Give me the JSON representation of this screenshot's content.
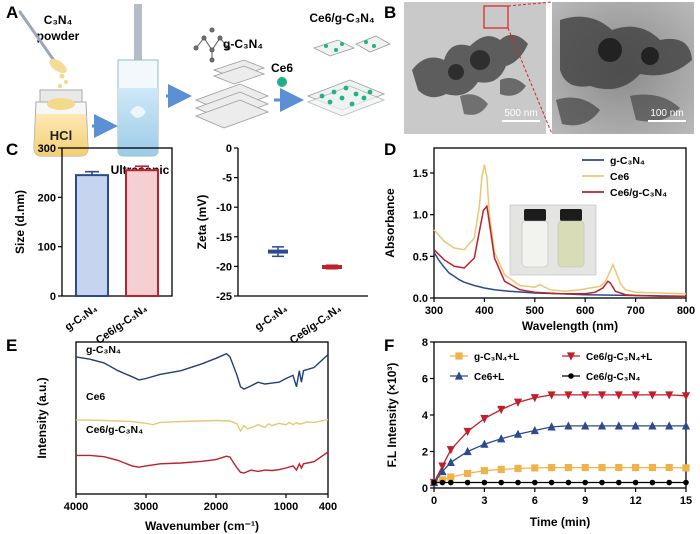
{
  "panels": {
    "A": {
      "letter": "A",
      "c3n4_powder_line1": "C₃N₄",
      "c3n4_powder_line2": "powder",
      "hcl_label": "HCl",
      "ultrasonic_label": "Ultrasonic",
      "gc3n4_label": "g-C₃N₄",
      "ce6_label": "Ce6",
      "product_label": "Ce6/g-C₃N₄"
    },
    "B": {
      "letter": "B",
      "scale_left": "500 nm",
      "scale_right": "100 nm"
    },
    "C": {
      "letter": "C"
    },
    "D": {
      "letter": "D"
    },
    "E": {
      "letter": "E"
    },
    "F": {
      "letter": "F"
    }
  },
  "chart_data": [
    {
      "id": "C-size",
      "type": "bar",
      "ylabel": "Size (d.nm)",
      "ylim": [
        0,
        300
      ],
      "yticks": [
        0,
        100,
        200,
        300
      ],
      "categories": [
        "g-C₃N₄",
        "Ce6/g-C₃N₄"
      ],
      "values": [
        245,
        255
      ],
      "errors": [
        7,
        8
      ],
      "colors": [
        "#2b4a8f",
        "#c0202a"
      ],
      "fills": [
        "#c6d4ef",
        "#f5d0d3"
      ]
    },
    {
      "id": "C-zeta",
      "type": "scatter",
      "ylabel": "Zeta (mV)",
      "ylim": [
        -25,
        0
      ],
      "yticks": [
        -25,
        -20,
        -15,
        -10,
        -5,
        0
      ],
      "categories": [
        "g-C₃N₄",
        "Ce6/g-C₃N₄"
      ],
      "values": [
        -17.5,
        -20.1
      ],
      "spread": [
        0.8,
        0.3
      ],
      "colors": [
        "#2b4a8f",
        "#c0202a"
      ]
    },
    {
      "id": "D-absorbance",
      "type": "line",
      "xlabel": "Wavelength (nm)",
      "ylabel": "Absorbance",
      "xlim": [
        300,
        800
      ],
      "ylim": [
        0,
        1.8
      ],
      "xticks": [
        300,
        400,
        500,
        600,
        700,
        800
      ],
      "yticks": [
        0,
        0.5,
        1.0,
        1.5
      ],
      "ytick_labels": [
        "0.0",
        "0.5",
        "1.0",
        "1.5"
      ],
      "series": [
        {
          "name": "g-C₃N₄",
          "color": "#2b4a8f",
          "x": [
            300,
            310,
            320,
            330,
            340,
            350,
            360,
            380,
            400,
            420,
            450,
            500,
            550,
            600,
            650,
            700,
            750,
            800
          ],
          "y": [
            0.55,
            0.45,
            0.37,
            0.3,
            0.26,
            0.22,
            0.19,
            0.15,
            0.12,
            0.1,
            0.08,
            0.06,
            0.05,
            0.04,
            0.035,
            0.03,
            0.025,
            0.02
          ]
        },
        {
          "name": "Ce6",
          "color": "#e8c873",
          "x": [
            300,
            320,
            340,
            360,
            380,
            390,
            395,
            400,
            405,
            410,
            420,
            440,
            470,
            500,
            510,
            530,
            560,
            590,
            610,
            630,
            640,
            650,
            655,
            660,
            670,
            680,
            700,
            750,
            800
          ],
          "y": [
            0.82,
            0.68,
            0.6,
            0.58,
            0.72,
            1.1,
            1.45,
            1.6,
            1.45,
            1.0,
            0.55,
            0.28,
            0.15,
            0.13,
            0.16,
            0.1,
            0.08,
            0.1,
            0.12,
            0.14,
            0.2,
            0.33,
            0.4,
            0.33,
            0.17,
            0.1,
            0.07,
            0.06,
            0.05
          ]
        },
        {
          "name": "Ce6/g-C₃N₄",
          "color": "#c0202a",
          "x": [
            300,
            320,
            340,
            360,
            380,
            390,
            398,
            405,
            410,
            420,
            440,
            470,
            500,
            550,
            600,
            620,
            635,
            645,
            650,
            660,
            680,
            700,
            750,
            800
          ],
          "y": [
            0.58,
            0.46,
            0.38,
            0.36,
            0.48,
            0.8,
            1.05,
            1.1,
            0.9,
            0.48,
            0.2,
            0.1,
            0.07,
            0.05,
            0.05,
            0.07,
            0.12,
            0.2,
            0.18,
            0.08,
            0.04,
            0.03,
            0.02,
            0.02
          ]
        }
      ]
    },
    {
      "id": "E-ftir",
      "type": "line",
      "xlabel": "Wavenumber (cm⁻¹)",
      "ylabel": "Intensity (a.u.)",
      "xlim": [
        4000,
        400
      ],
      "xticks": [
        4000,
        3000,
        2000,
        1000,
        400
      ],
      "series": [
        {
          "name": "g-C₃N₄",
          "color": "#1f3f7a",
          "x": [
            4000,
            3800,
            3600,
            3400,
            3200,
            3100,
            3000,
            2800,
            2500,
            2200,
            2000,
            1850,
            1800,
            1700,
            1650,
            1600,
            1500,
            1400,
            1300,
            1200,
            1100,
            1000,
            900,
            850,
            810,
            780,
            750,
            600,
            400
          ],
          "y": [
            0.85,
            0.8,
            0.72,
            0.55,
            0.42,
            0.35,
            0.38,
            0.47,
            0.55,
            0.7,
            0.82,
            0.92,
            0.85,
            0.45,
            0.2,
            0.15,
            0.22,
            0.3,
            0.26,
            0.28,
            0.3,
            0.38,
            0.45,
            0.2,
            0.55,
            0.3,
            0.55,
            0.62,
            0.9
          ]
        },
        {
          "name": "Ce6",
          "color": "#e8c873",
          "x": [
            4000,
            3800,
            3600,
            3400,
            3200,
            3000,
            2900,
            2800,
            2500,
            2200,
            2000,
            1800,
            1700,
            1650,
            1600,
            1550,
            1450,
            1400,
            1300,
            1250,
            1200,
            1100,
            1000,
            950,
            900,
            850,
            800,
            700,
            600,
            400
          ],
          "y": [
            0.52,
            0.52,
            0.51,
            0.5,
            0.49,
            0.45,
            0.42,
            0.47,
            0.49,
            0.5,
            0.51,
            0.5,
            0.44,
            0.28,
            0.4,
            0.33,
            0.38,
            0.42,
            0.36,
            0.44,
            0.4,
            0.45,
            0.42,
            0.47,
            0.42,
            0.46,
            0.43,
            0.48,
            0.47,
            0.53
          ]
        },
        {
          "name": "Ce6/g-C₃N₄",
          "color": "#c0202a",
          "x": [
            4000,
            3800,
            3600,
            3400,
            3200,
            3100,
            3000,
            2800,
            2500,
            2200,
            2000,
            1850,
            1800,
            1700,
            1650,
            1600,
            1500,
            1400,
            1300,
            1200,
            1100,
            1000,
            900,
            850,
            810,
            780,
            750,
            600,
            400
          ],
          "y": [
            0.3,
            0.3,
            0.27,
            0.18,
            0.05,
            0.02,
            0.05,
            0.1,
            0.12,
            0.16,
            0.2,
            0.28,
            0.26,
            0.0,
            -0.1,
            -0.12,
            -0.05,
            -0.08,
            -0.05,
            -0.06,
            -0.04,
            0.0,
            0.05,
            -0.05,
            0.1,
            0.0,
            0.1,
            0.15,
            0.38
          ]
        }
      ]
    },
    {
      "id": "F-fluorescence",
      "type": "line",
      "xlabel": "Time (min)",
      "ylabel": "F.L Intensity (×10³)",
      "xlim": [
        0,
        15
      ],
      "ylim": [
        0,
        8
      ],
      "xticks": [
        0,
        3,
        6,
        9,
        12,
        15
      ],
      "yticks": [
        0,
        2,
        4,
        6,
        8
      ],
      "series": [
        {
          "name": "g-C₃N₄+L",
          "color": "#f0b34a",
          "marker": "square",
          "x": [
            0,
            0.5,
            1,
            2,
            3,
            4,
            5,
            6,
            7,
            8,
            9,
            10,
            11,
            12,
            13,
            14,
            15
          ],
          "y": [
            0.3,
            0.45,
            0.6,
            0.8,
            0.95,
            1.02,
            1.07,
            1.1,
            1.12,
            1.12,
            1.12,
            1.12,
            1.12,
            1.12,
            1.12,
            1.12,
            1.1
          ]
        },
        {
          "name": "Ce6/g-C₃N₄+L",
          "color": "#c0202a",
          "marker": "triangle-down",
          "x": [
            0,
            0.5,
            1,
            2,
            3,
            4,
            5,
            6,
            7,
            8,
            9,
            10,
            11,
            12,
            13,
            14,
            15
          ],
          "y": [
            0.3,
            1.2,
            2.1,
            3.1,
            3.8,
            4.3,
            4.7,
            4.95,
            5.1,
            5.1,
            5.1,
            5.1,
            5.1,
            5.1,
            5.1,
            5.1,
            5.05
          ]
        },
        {
          "name": "Ce6+L",
          "color": "#2b4a8f",
          "marker": "triangle-up",
          "x": [
            0,
            0.5,
            1,
            2,
            3,
            4,
            5,
            6,
            7,
            8,
            9,
            10,
            11,
            12,
            13,
            14,
            15
          ],
          "y": [
            0.3,
            0.9,
            1.4,
            2.0,
            2.4,
            2.7,
            2.95,
            3.15,
            3.35,
            3.4,
            3.4,
            3.4,
            3.4,
            3.4,
            3.4,
            3.4,
            3.4
          ]
        },
        {
          "name": "Ce6/g-C₃N₄",
          "color": "#000000",
          "marker": "circle",
          "x": [
            0,
            0.5,
            1,
            2,
            3,
            4,
            5,
            6,
            7,
            8,
            9,
            10,
            11,
            12,
            13,
            14,
            15
          ],
          "y": [
            0.3,
            0.3,
            0.3,
            0.3,
            0.3,
            0.3,
            0.3,
            0.3,
            0.3,
            0.3,
            0.3,
            0.3,
            0.3,
            0.3,
            0.3,
            0.3,
            0.3
          ]
        }
      ]
    }
  ]
}
